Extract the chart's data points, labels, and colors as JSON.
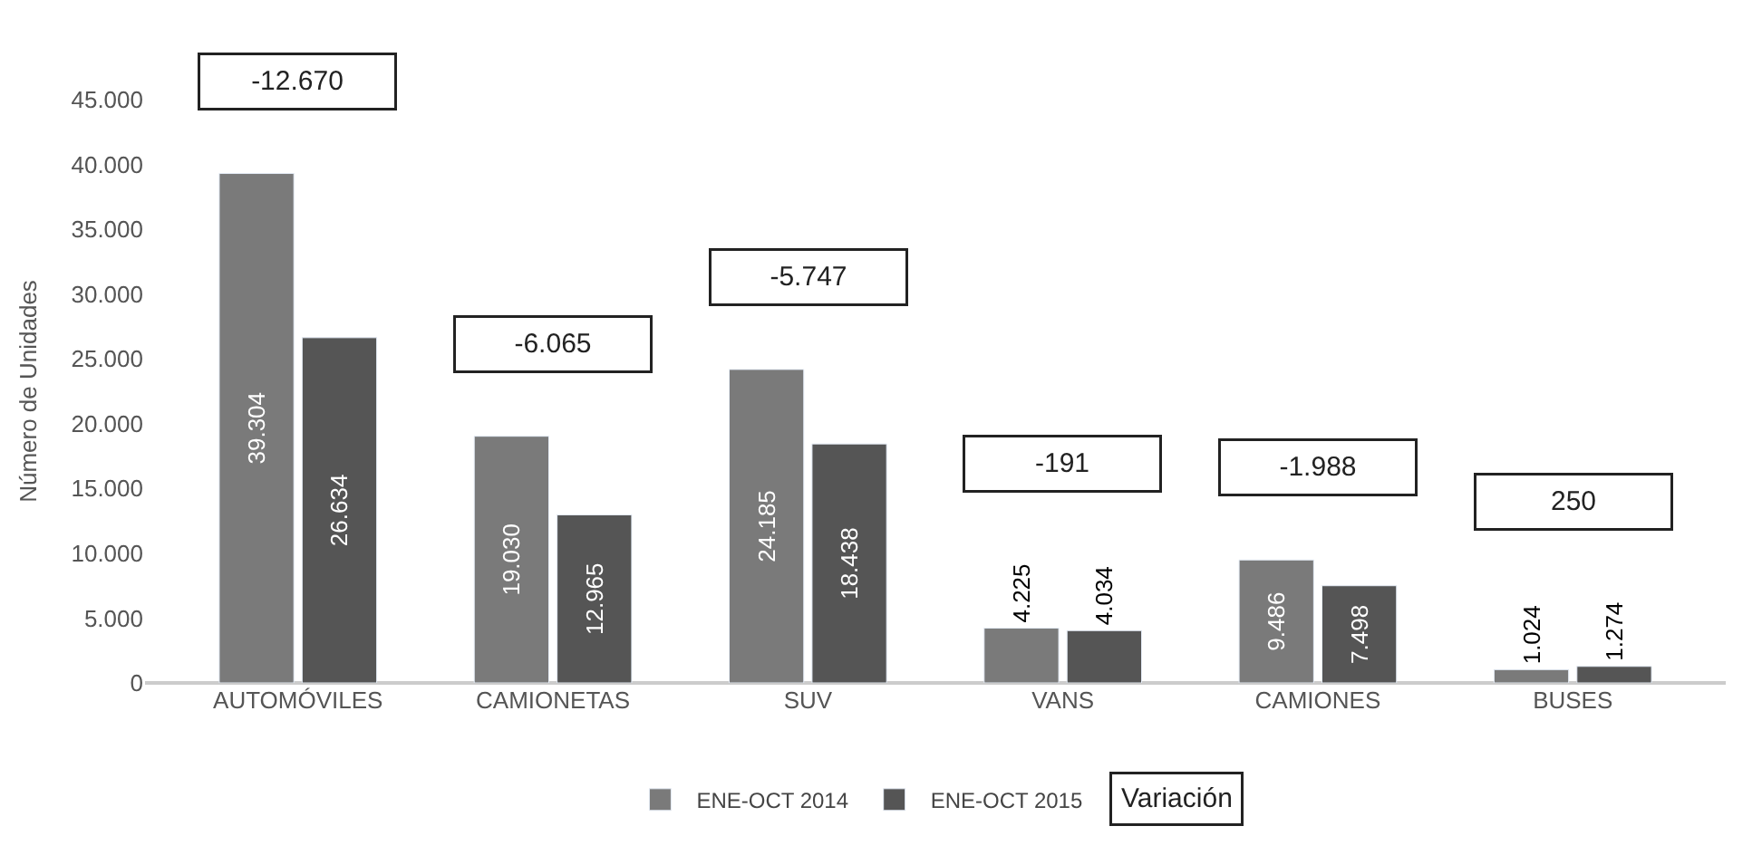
{
  "chart_data": {
    "type": "bar",
    "ylabel": "Número de Unidades",
    "categories": [
      "AUTOMÓVILES",
      "CAMIONETAS",
      "SUV",
      "VANS",
      "CAMIONES",
      "BUSES"
    ],
    "series": [
      {
        "name": "ENE-OCT 2014",
        "color": "#7a7a7a",
        "values": [
          39304,
          19030,
          24185,
          4225,
          9486,
          1024
        ],
        "value_labels": [
          "39.304",
          "19.030",
          "24.185",
          "4.225",
          "9.486",
          "1.024"
        ]
      },
      {
        "name": "ENE-OCT 2015",
        "color": "#555555",
        "values": [
          26634,
          12965,
          18438,
          4034,
          7498,
          1274
        ],
        "value_labels": [
          "26.634",
          "12.965",
          "18.438",
          "4.034",
          "7.498",
          "1.274"
        ]
      }
    ],
    "ylim": [
      0,
      45000
    ],
    "yticks": [
      {
        "value": 0,
        "label": "0"
      },
      {
        "value": 5000,
        "label": "5.000"
      },
      {
        "value": 10000,
        "label": "10.000"
      },
      {
        "value": 15000,
        "label": "15.000"
      },
      {
        "value": 20000,
        "label": "20.000"
      },
      {
        "value": 25000,
        "label": "25.000"
      },
      {
        "value": 30000,
        "label": "30.000"
      },
      {
        "value": 35000,
        "label": "35.000"
      },
      {
        "value": 40000,
        "label": "40.000"
      },
      {
        "value": 45000,
        "label": "45.000"
      }
    ],
    "annotations": [
      "-12.670",
      "-6.065",
      "-5.747",
      "-191",
      "-1.988",
      "250",
      "Variación"
    ],
    "legend": "bottom"
  }
}
